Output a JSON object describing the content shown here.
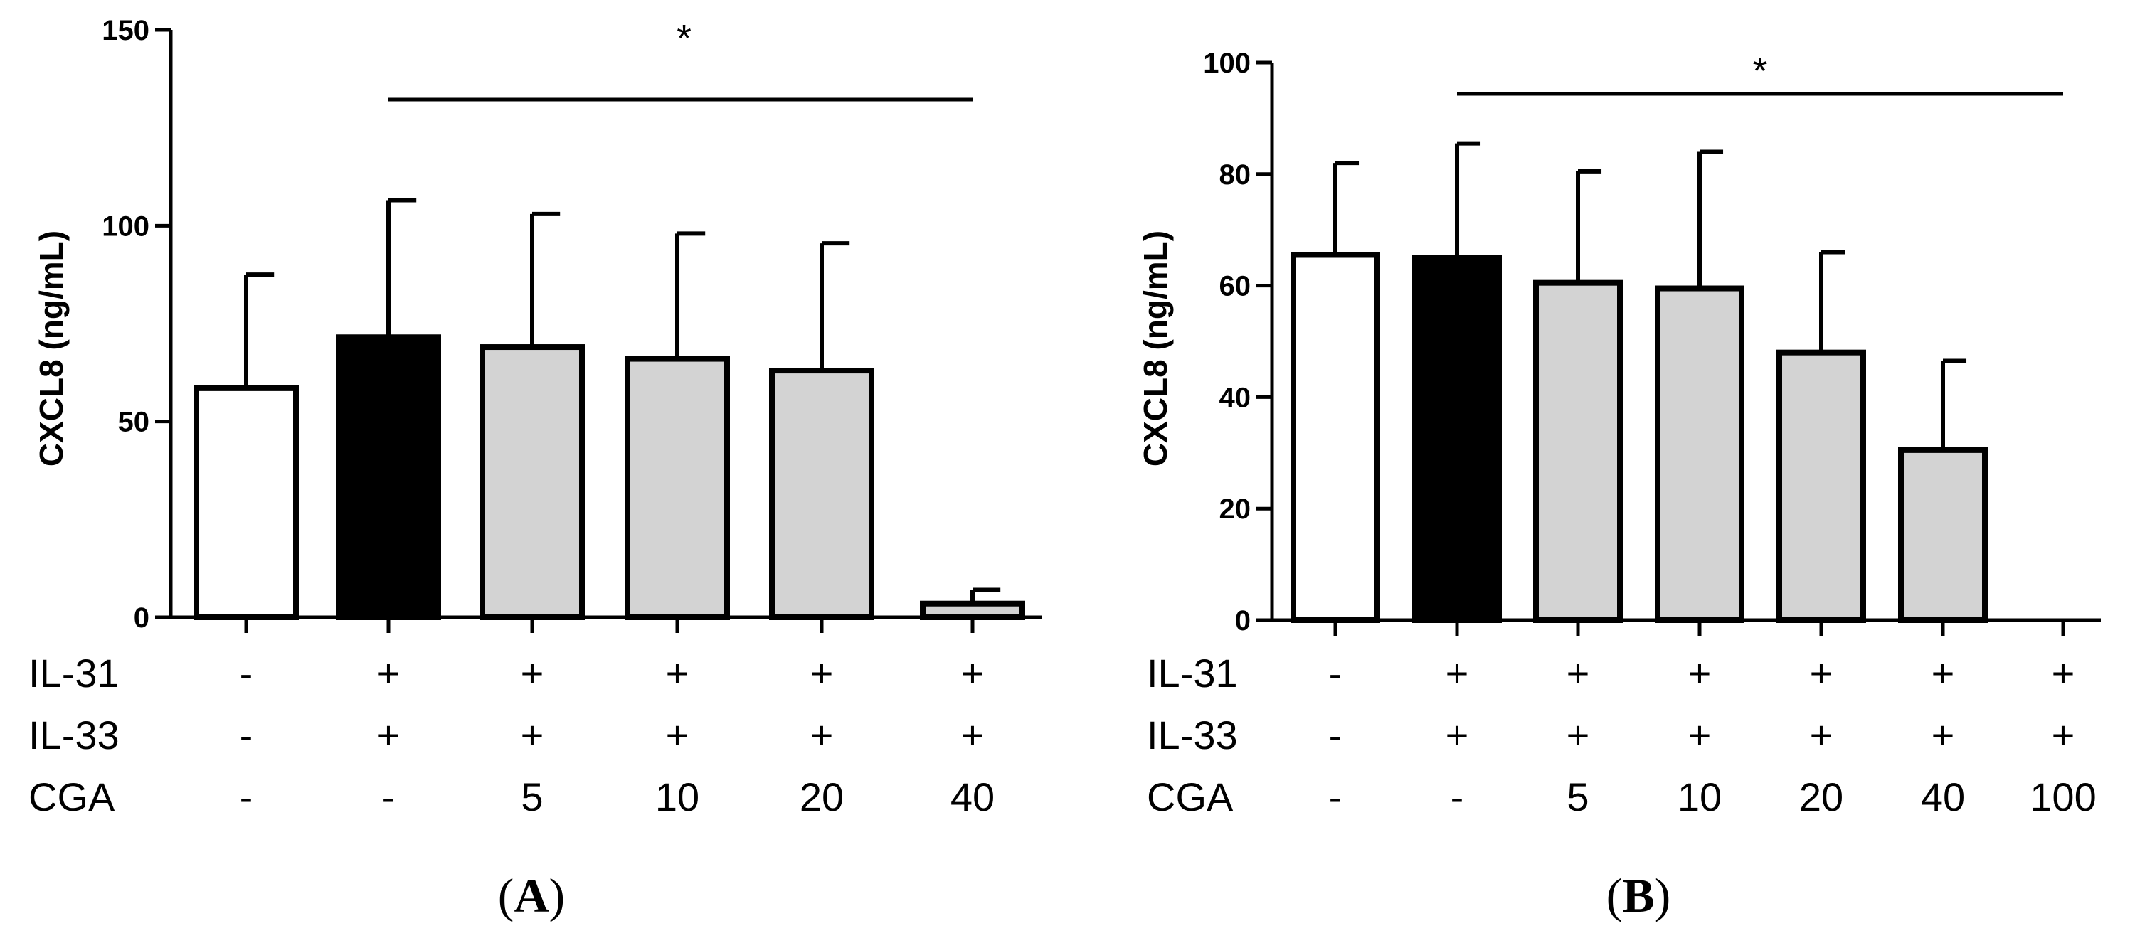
{
  "chart_data": [
    {
      "type": "bar",
      "panel_label": "A",
      "ylabel": "CXCL8 (ng/mL)",
      "ylim": [
        0,
        150
      ],
      "yticks": [
        "0",
        "50",
        "100",
        "150"
      ],
      "values": [
        58.5,
        71.5,
        69,
        66,
        63,
        3.5
      ],
      "errors": [
        29,
        35,
        34,
        32,
        32.5,
        3.5
      ],
      "fills": [
        "#ffffff",
        "#000000",
        "#d3d3d3",
        "#d3d3d3",
        "#d3d3d3",
        "#d3d3d3"
      ],
      "table": {
        "row_labels": [
          "IL-31",
          "IL-33",
          "CGA"
        ],
        "rows": [
          [
            "-",
            "+",
            "+",
            "+",
            "+",
            "+"
          ],
          [
            "-",
            "+",
            "+",
            "+",
            "+",
            "+"
          ],
          [
            "-",
            "-",
            "5",
            "10",
            "20",
            "40"
          ]
        ]
      },
      "significance": {
        "label": "*",
        "from": 1,
        "to": 5
      }
    },
    {
      "type": "bar",
      "panel_label": "B",
      "ylabel": "CXCL8 (ng/mL)",
      "ylim": [
        0,
        100
      ],
      "yticks": [
        "0",
        "20",
        "40",
        "60",
        "80",
        "100"
      ],
      "values": [
        65.5,
        65,
        60.5,
        59.5,
        48,
        30.5,
        0
      ],
      "errors": [
        16.5,
        20.5,
        20,
        24.5,
        18,
        16,
        0
      ],
      "fills": [
        "#ffffff",
        "#000000",
        "#d3d3d3",
        "#d3d3d3",
        "#d3d3d3",
        "#d3d3d3",
        "#d3d3d3"
      ],
      "table": {
        "row_labels": [
          "IL-31",
          "IL-33",
          "CGA"
        ],
        "rows": [
          [
            "-",
            "+",
            "+",
            "+",
            "+",
            "+",
            "+"
          ],
          [
            "-",
            "+",
            "+",
            "+",
            "+",
            "+",
            "+"
          ],
          [
            "-",
            "-",
            "5",
            "10",
            "20",
            "40",
            "100"
          ]
        ]
      },
      "significance": {
        "label": "*",
        "from": 1,
        "to": 6
      }
    }
  ]
}
